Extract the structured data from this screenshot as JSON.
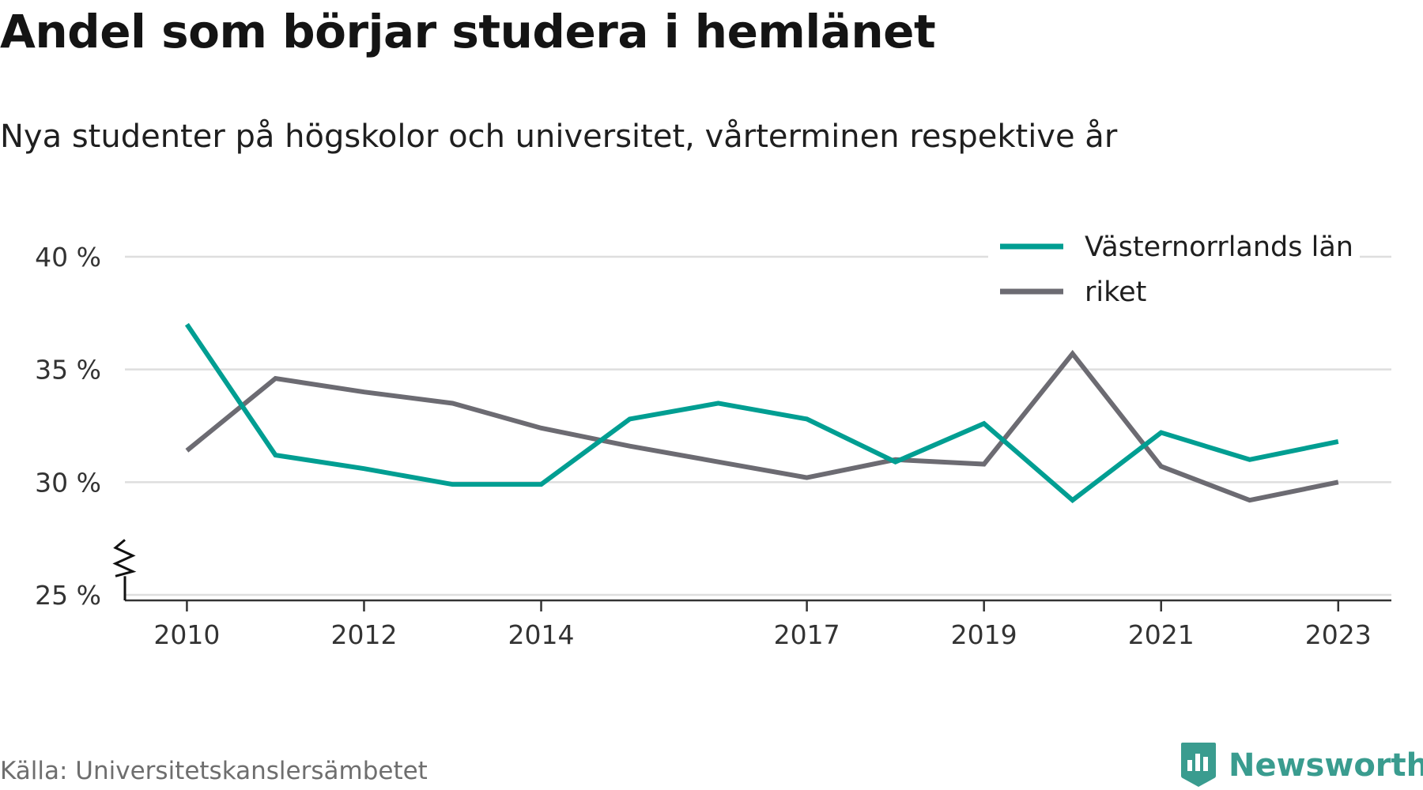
{
  "title": "Andel som börjar studera i hemlänet",
  "subtitle": "Nya studenter på högskolor och universitet, vårterminen respektive år",
  "source": "Källa: Universitetskanslersämbetet",
  "brand": "Newsworthy",
  "colors": {
    "series_1": "#009e92",
    "series_2": "#6c6b72",
    "grid": "#dedede",
    "axis": "#333333",
    "brand": "#3a9c8f"
  },
  "chart_data": {
    "type": "line",
    "x": [
      2010,
      2011,
      2012,
      2013,
      2014,
      2015,
      2016,
      2017,
      2018,
      2019,
      2020,
      2021,
      2022,
      2023
    ],
    "x_tick_labels": [
      "2010",
      "2012",
      "2014",
      "2017",
      "2019",
      "2021",
      "2023"
    ],
    "x_tick_values": [
      2010,
      2012,
      2014,
      2017,
      2019,
      2021,
      2023
    ],
    "xlim": [
      2009.3,
      2023.6
    ],
    "ylim": [
      25,
      40
    ],
    "y_ticks": [
      25,
      30,
      35,
      40
    ],
    "y_tick_labels": [
      "25 %",
      "30 %",
      "35 %",
      "40 %"
    ],
    "y_axis_break": true,
    "grid": true,
    "legend_position": "top-right",
    "series": [
      {
        "name": "Västernorrlands län",
        "color": "#009e92",
        "values": [
          37.0,
          31.2,
          30.6,
          29.9,
          29.9,
          32.8,
          33.5,
          32.8,
          30.9,
          32.6,
          29.2,
          32.2,
          31.0,
          31.8
        ]
      },
      {
        "name": "riket",
        "color": "#6c6b72",
        "values": [
          31.4,
          34.6,
          34.0,
          33.5,
          32.4,
          31.6,
          30.9,
          30.2,
          31.0,
          30.8,
          35.7,
          30.7,
          29.2,
          30.0
        ]
      }
    ]
  }
}
